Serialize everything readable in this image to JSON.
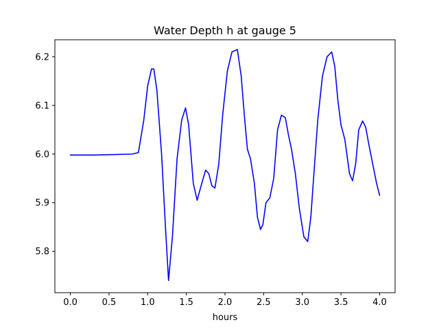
{
  "chart_data": {
    "type": "line",
    "title": "Water Depth h at gauge 5",
    "xlabel": "hours",
    "ylabel": "",
    "xlim": [
      -0.2,
      4.2
    ],
    "ylim": [
      5.715,
      6.235
    ],
    "xticks": [
      0.0,
      0.5,
      1.0,
      1.5,
      2.0,
      2.5,
      3.0,
      3.5,
      4.0
    ],
    "xtick_labels": [
      "0.0",
      "0.5",
      "1.0",
      "1.5",
      "2.0",
      "2.5",
      "3.0",
      "3.5",
      "4.0"
    ],
    "yticks": [
      5.8,
      5.9,
      6.0,
      6.1,
      6.2
    ],
    "ytick_labels": [
      "5.8",
      "5.9",
      "6.0",
      "6.1",
      "6.2"
    ],
    "grid": false,
    "series": [
      {
        "color": "#0000ff",
        "x": [
          0.0,
          0.3,
          0.6,
          0.8,
          0.88,
          0.95,
          1.0,
          1.05,
          1.08,
          1.12,
          1.18,
          1.23,
          1.27,
          1.32,
          1.38,
          1.44,
          1.49,
          1.53,
          1.59,
          1.64,
          1.7,
          1.75,
          1.79,
          1.83,
          1.87,
          1.92,
          1.97,
          2.03,
          2.09,
          2.16,
          2.21,
          2.25,
          2.29,
          2.33,
          2.38,
          2.42,
          2.46,
          2.49,
          2.53,
          2.58,
          2.63,
          2.68,
          2.73,
          2.78,
          2.82,
          2.86,
          2.91,
          2.96,
          3.02,
          3.07,
          3.11,
          3.15,
          3.2,
          3.26,
          3.32,
          3.38,
          3.42,
          3.46,
          3.5,
          3.55,
          3.61,
          3.65,
          3.69,
          3.73,
          3.78,
          3.82,
          3.86,
          3.91,
          3.96,
          4.0
        ],
        "y": [
          5.998,
          5.998,
          5.999,
          6.0,
          6.003,
          6.07,
          6.14,
          6.175,
          6.175,
          6.13,
          6.0,
          5.85,
          5.74,
          5.83,
          5.99,
          6.07,
          6.095,
          6.06,
          5.94,
          5.905,
          5.94,
          5.967,
          5.96,
          5.935,
          5.93,
          5.98,
          6.08,
          6.17,
          6.21,
          6.215,
          6.16,
          6.08,
          6.01,
          5.99,
          5.94,
          5.87,
          5.845,
          5.855,
          5.9,
          5.91,
          5.95,
          6.05,
          6.08,
          6.075,
          6.04,
          6.01,
          5.96,
          5.89,
          5.83,
          5.82,
          5.87,
          5.96,
          6.07,
          6.16,
          6.2,
          6.21,
          6.18,
          6.11,
          6.06,
          6.03,
          5.96,
          5.945,
          5.98,
          6.05,
          6.068,
          6.055,
          6.02,
          5.98,
          5.94,
          5.915
        ]
      }
    ]
  }
}
